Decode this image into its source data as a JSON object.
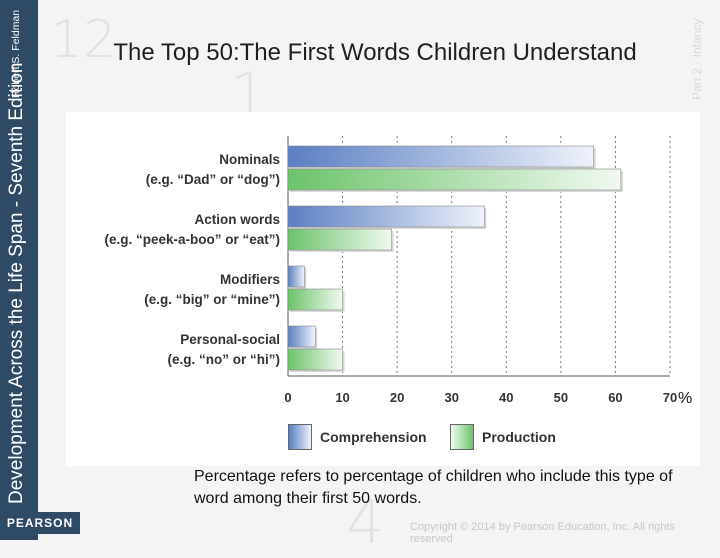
{
  "slide": {
    "title": "The Top 50:The First Words Children Understand",
    "sidebar_book": "Development Across the Life Span - Seventh Edition",
    "sidebar_author": "Robert S. Feldman",
    "publisher": "PEARSON",
    "note": "Percentage refers to percentage of children who include this type of word among their first 50 words.",
    "copyright": "Copyright © 2014 by Pearson Education, Inc. All rights reserved",
    "percent_sign": "%",
    "deco_number_1": "12",
    "deco_number_2": "1",
    "deco_number_3": "4",
    "deco_part": "Part 2 · Infancy"
  },
  "chart_data": {
    "type": "bar",
    "orientation": "horizontal",
    "categories": [
      {
        "name": "Nominals",
        "example": "(e.g. “Dad” or “dog”)"
      },
      {
        "name": "Action words",
        "example": "(e.g. “peek-a-boo” or “eat”)"
      },
      {
        "name": "Modifiers",
        "example": "(e.g. “big” or “mine”)"
      },
      {
        "name": "Personal-social",
        "example": "(e.g. “no” or “hi”)"
      }
    ],
    "series": [
      {
        "name": "Comprehension",
        "values": [
          56,
          36,
          3,
          5
        ],
        "color": "#5b7fc3"
      },
      {
        "name": "Production",
        "values": [
          61,
          19,
          10,
          10
        ],
        "color": "#6cc46b"
      }
    ],
    "xlim": [
      0,
      70
    ],
    "xticks": [
      0,
      10,
      20,
      30,
      40,
      50,
      60,
      70
    ],
    "grid": "vertical dashed",
    "legend": "bottom"
  },
  "colors": {
    "sidebar": "#2f4a64",
    "comprehension": "#5b7fc3",
    "production": "#6cc46b"
  }
}
